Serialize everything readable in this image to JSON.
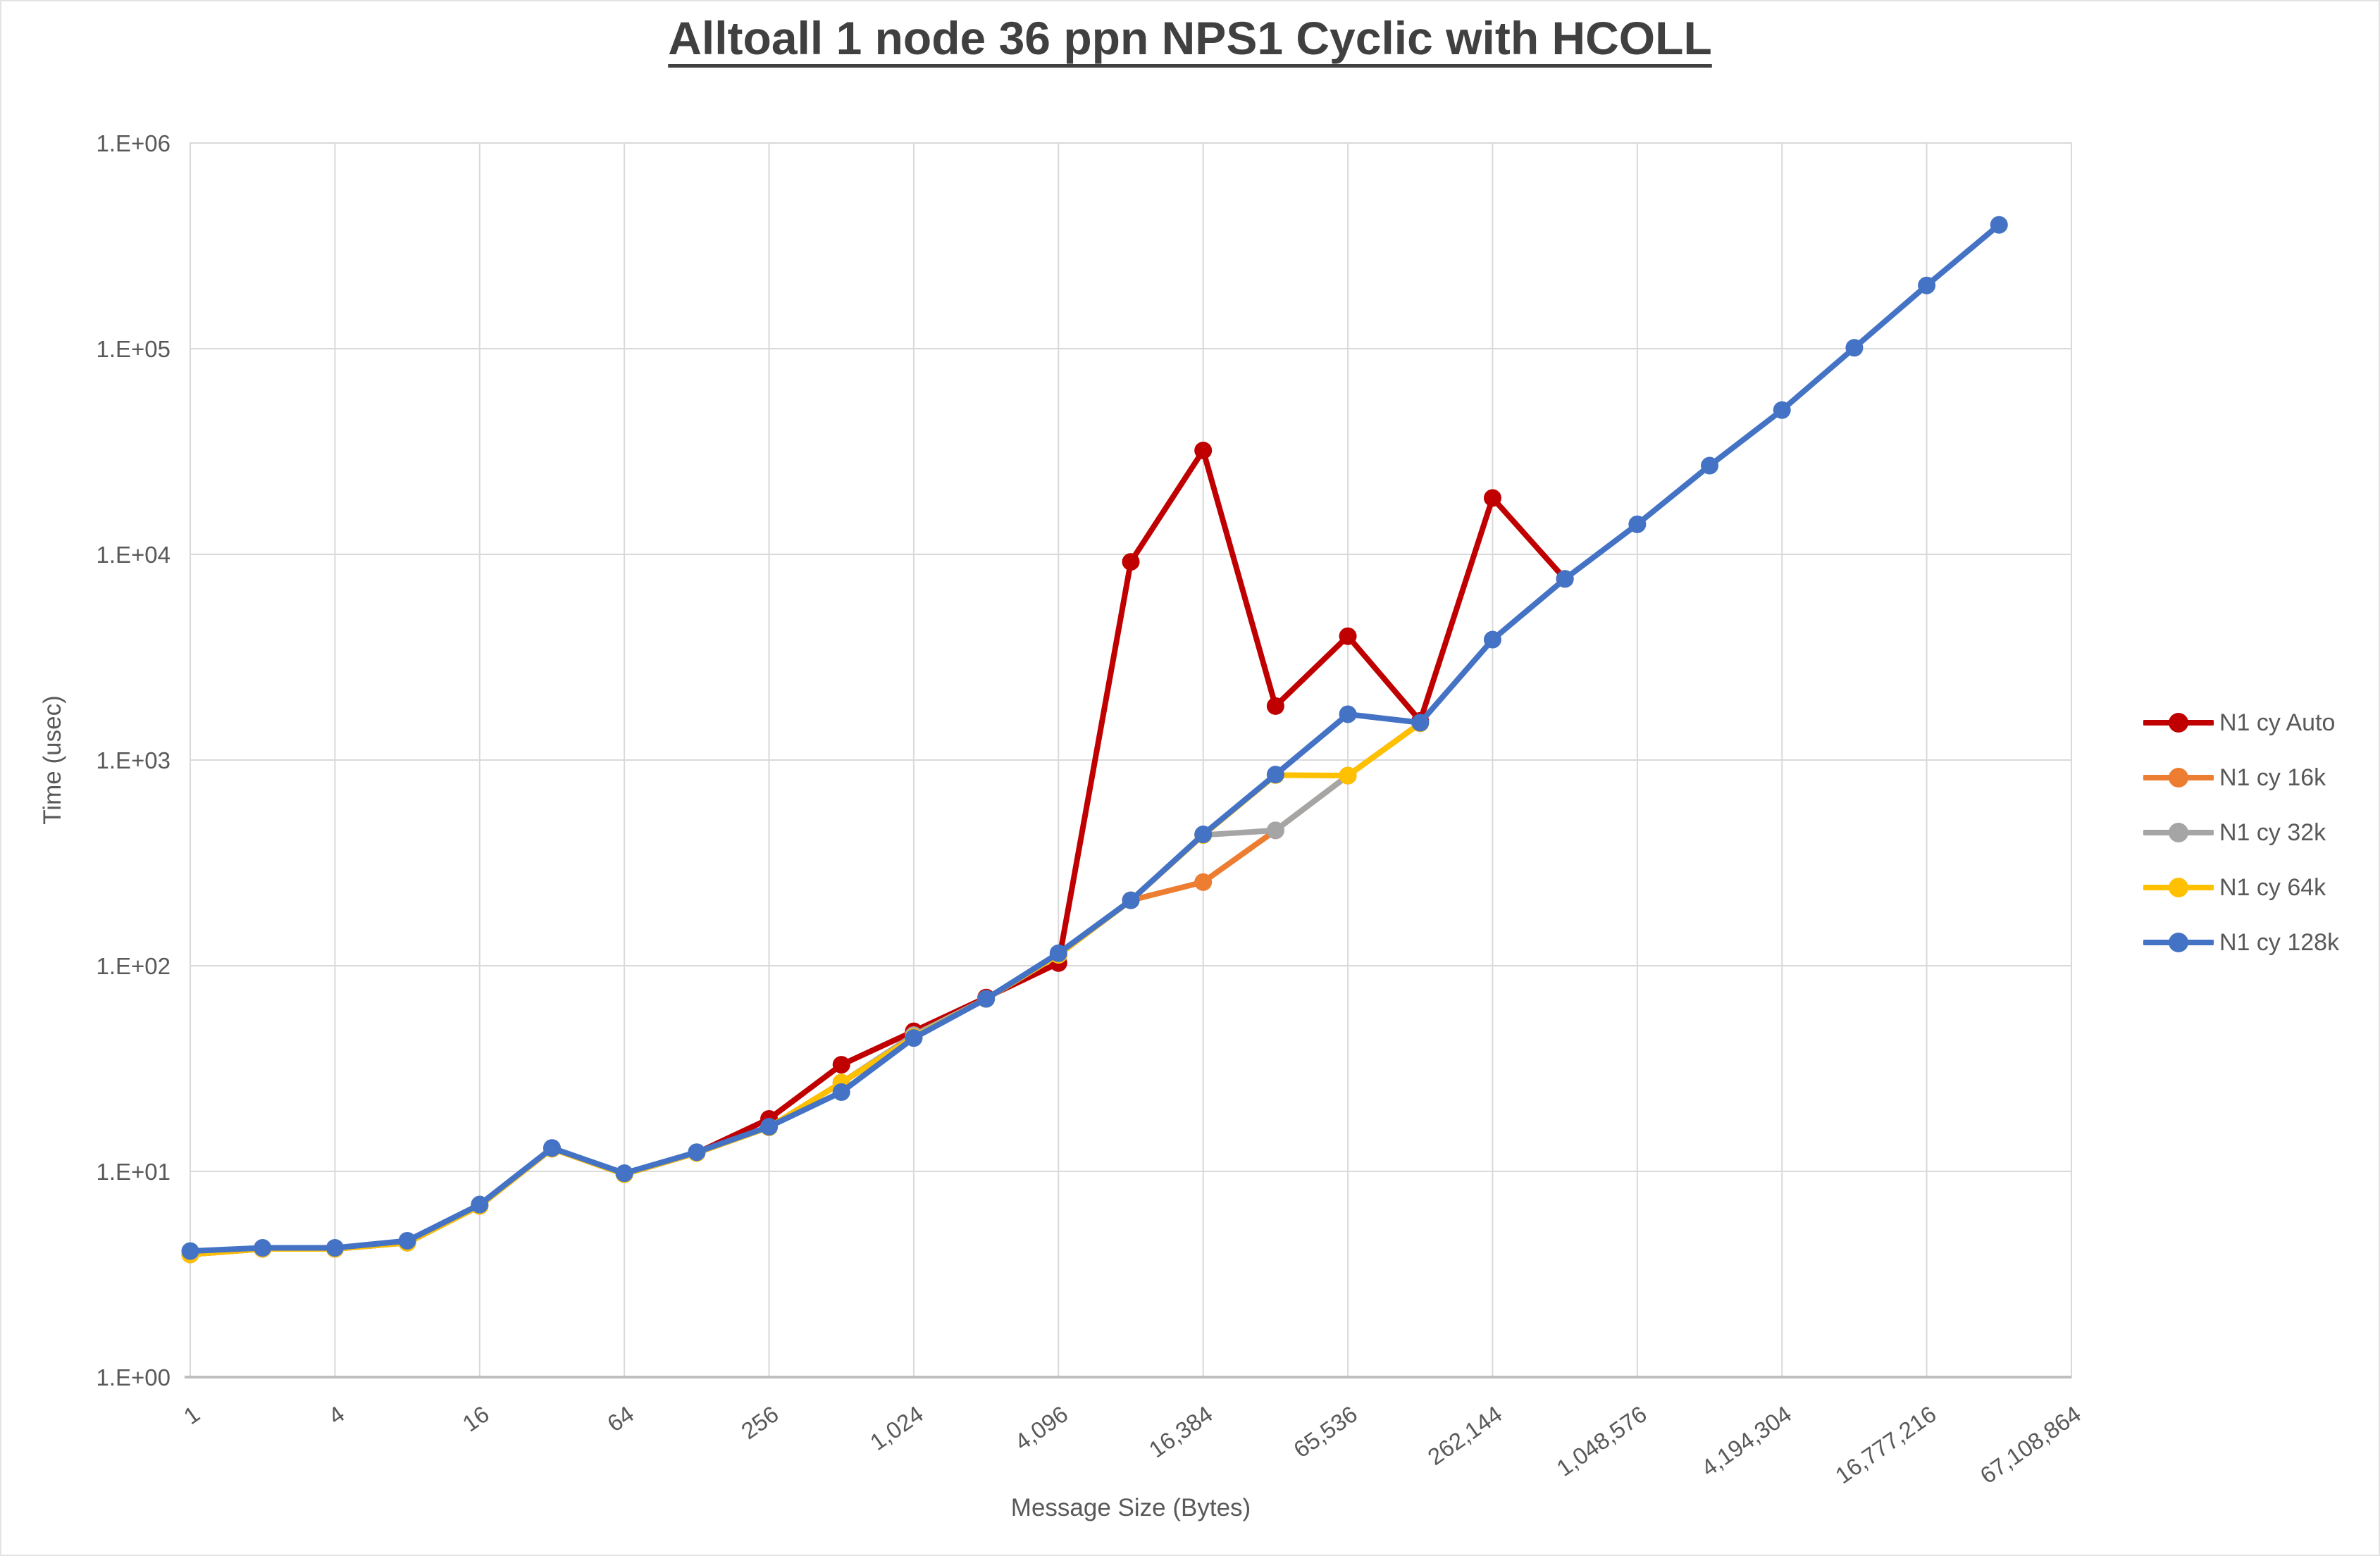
{
  "title": "Alltoall 1 node 36 ppn NPS1 Cyclic with HCOLL",
  "chart_data": {
    "type": "line",
    "x_scale": "log2_categorical",
    "y_scale": "log10",
    "xlabel": "Message Size (Bytes)",
    "ylabel": "Time (usec)",
    "ylim": [
      1,
      1000000
    ],
    "grid": true,
    "legend_position": "right",
    "y_tick_labels": [
      "1.E+06",
      "1.E+05",
      "1.E+04",
      "1.E+03",
      "1.E+02",
      "1.E+01",
      "1.E+00"
    ],
    "x_tick_labels": [
      "1",
      "4",
      "16",
      "64",
      "256",
      "1,024",
      "4,096",
      "16,384",
      "65,536",
      "262,144",
      "1,048,576",
      "4,194,304",
      "16,777,216",
      "67,108,864"
    ],
    "categories": [
      1,
      2,
      4,
      8,
      16,
      32,
      64,
      128,
      256,
      512,
      1024,
      2048,
      4096,
      8192,
      16384,
      32768,
      65536,
      131072,
      262144,
      524288,
      1048576,
      2097152,
      4194304,
      8388608,
      16777216,
      33554432
    ],
    "series": [
      {
        "name": "N1 cy Auto",
        "color": "#C00000",
        "values": [
          3.95,
          4.2,
          4.2,
          4.5,
          6.8,
          12.9,
          9.7,
          12.3,
          18,
          33,
          48,
          70,
          103,
          9200,
          32000,
          1830,
          4000,
          1550,
          18800,
          7600
        ]
      },
      {
        "name": "N1 cy 16k",
        "color": "#ED7D31",
        "values": [
          3.95,
          4.2,
          4.2,
          4.5,
          6.8,
          12.9,
          9.7,
          12.3,
          16.4,
          27,
          45,
          69,
          113,
          208,
          255,
          455,
          840,
          1510
        ]
      },
      {
        "name": "N1 cy 32k",
        "color": "#A5A5A5",
        "values": [
          3.95,
          4.2,
          4.2,
          4.5,
          6.8,
          12.9,
          9.7,
          12.3,
          16.4,
          27,
          46,
          69,
          113,
          208,
          432,
          455,
          840,
          1510
        ]
      },
      {
        "name": "N1 cy 64k",
        "color": "#FFC000",
        "values": [
          3.95,
          4.2,
          4.2,
          4.5,
          6.8,
          12.9,
          9.7,
          12.3,
          16.4,
          27,
          45,
          69,
          113,
          208,
          432,
          845,
          840,
          1510
        ]
      },
      {
        "name": "N1 cy 128k",
        "color": "#4472C4",
        "values": [
          4.1,
          4.25,
          4.25,
          4.6,
          6.9,
          13,
          9.8,
          12.4,
          16.5,
          24.3,
          44.5,
          69,
          115,
          208,
          435,
          850,
          1670,
          1520,
          3850,
          7600,
          14000,
          27000,
          50300,
          101000,
          203000,
          400000
        ]
      }
    ]
  },
  "colors": {
    "background": "#FFFFFF",
    "grid": "#D9D9D9",
    "axis_line": "#BFBFBF",
    "tick_text": "#595959",
    "title_text": "#404040"
  }
}
